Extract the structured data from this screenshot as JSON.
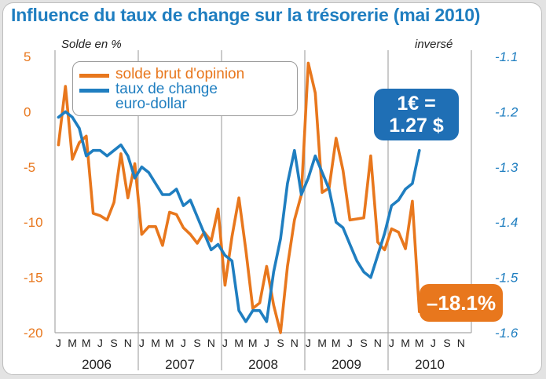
{
  "title": {
    "main": "Influence du taux de change sur la trésorerie",
    "sub": "(mai 2010)"
  },
  "axes": {
    "left_label": "Solde en %",
    "right_label": "inversé",
    "left_ticks": [
      "5",
      "0",
      "-5",
      "-10",
      "-15",
      "-20"
    ],
    "left_tick_values": [
      5,
      0,
      -5,
      -10,
      -15,
      -20
    ],
    "right_ticks": [
      "-1.1",
      "-1.2",
      "-1.3",
      "-1.4",
      "-1.5",
      "-1.6"
    ],
    "right_tick_values": [
      -1.1,
      -1.2,
      -1.3,
      -1.4,
      -1.5,
      -1.6
    ],
    "month_labels": [
      "J",
      "M",
      "M",
      "J",
      "S",
      "N"
    ],
    "years": [
      "2006",
      "2007",
      "2008",
      "2009",
      "2010"
    ]
  },
  "legend": {
    "series1": "solde brut d'opinion",
    "series2_line1": "taux de change",
    "series2_line2": "euro-dollar"
  },
  "callouts": {
    "fx_line1": "1€ =",
    "fx_line2": "1.27 $",
    "solde": "–18.1%"
  },
  "colors": {
    "orange": "#e8771d",
    "blue": "#1f7ec0",
    "grid": "#a8a8a8"
  },
  "chart_data": {
    "type": "line",
    "x_start": "2006-01",
    "x_end": "2010-12",
    "x_interval": "month",
    "ylim_left": [
      -20,
      5
    ],
    "ylim_right_inverted": [
      -1.6,
      -1.1
    ],
    "series": [
      {
        "name": "solde brut d'opinion",
        "axis": "left",
        "values": [
          -3,
          2.3,
          -4.3,
          -2.8,
          -2.2,
          -9.2,
          -9.4,
          -9.8,
          -8.2,
          -3.8,
          -7.8,
          -4.7,
          -11.1,
          -10.4,
          -10.4,
          -12.1,
          -9.1,
          -9.3,
          -10.5,
          -11.1,
          -11.9,
          -10.9,
          -11.7,
          -8.8,
          -15.7,
          -11.3,
          -7.8,
          -12.5,
          -17.8,
          -17.3,
          -14.0,
          -17.5,
          -20.0,
          -14.0,
          -9.8,
          -7.5,
          4.4,
          1.7,
          -7.3,
          -6.9,
          -2.4,
          -5.3,
          -9.8,
          -9.7,
          -9.6,
          -4.0,
          -11.8,
          -12.5,
          -10.6,
          -10.9,
          -12.4,
          -8.1,
          -18.1
        ]
      },
      {
        "name": "taux de change euro-dollar",
        "axis": "right",
        "values": [
          -1.21,
          -1.2,
          -1.21,
          -1.23,
          -1.28,
          -1.27,
          -1.27,
          -1.28,
          -1.27,
          -1.26,
          -1.28,
          -1.32,
          -1.3,
          -1.31,
          -1.33,
          -1.35,
          -1.35,
          -1.34,
          -1.37,
          -1.36,
          -1.39,
          -1.42,
          -1.45,
          -1.44,
          -1.46,
          -1.47,
          -1.56,
          -1.58,
          -1.56,
          -1.56,
          -1.58,
          -1.49,
          -1.43,
          -1.33,
          -1.27,
          -1.35,
          -1.32,
          -1.28,
          -1.31,
          -1.34,
          -1.4,
          -1.41,
          -1.44,
          -1.47,
          -1.49,
          -1.5,
          -1.46,
          -1.42,
          -1.37,
          -1.36,
          -1.34,
          -1.33,
          -1.27
        ]
      }
    ]
  }
}
